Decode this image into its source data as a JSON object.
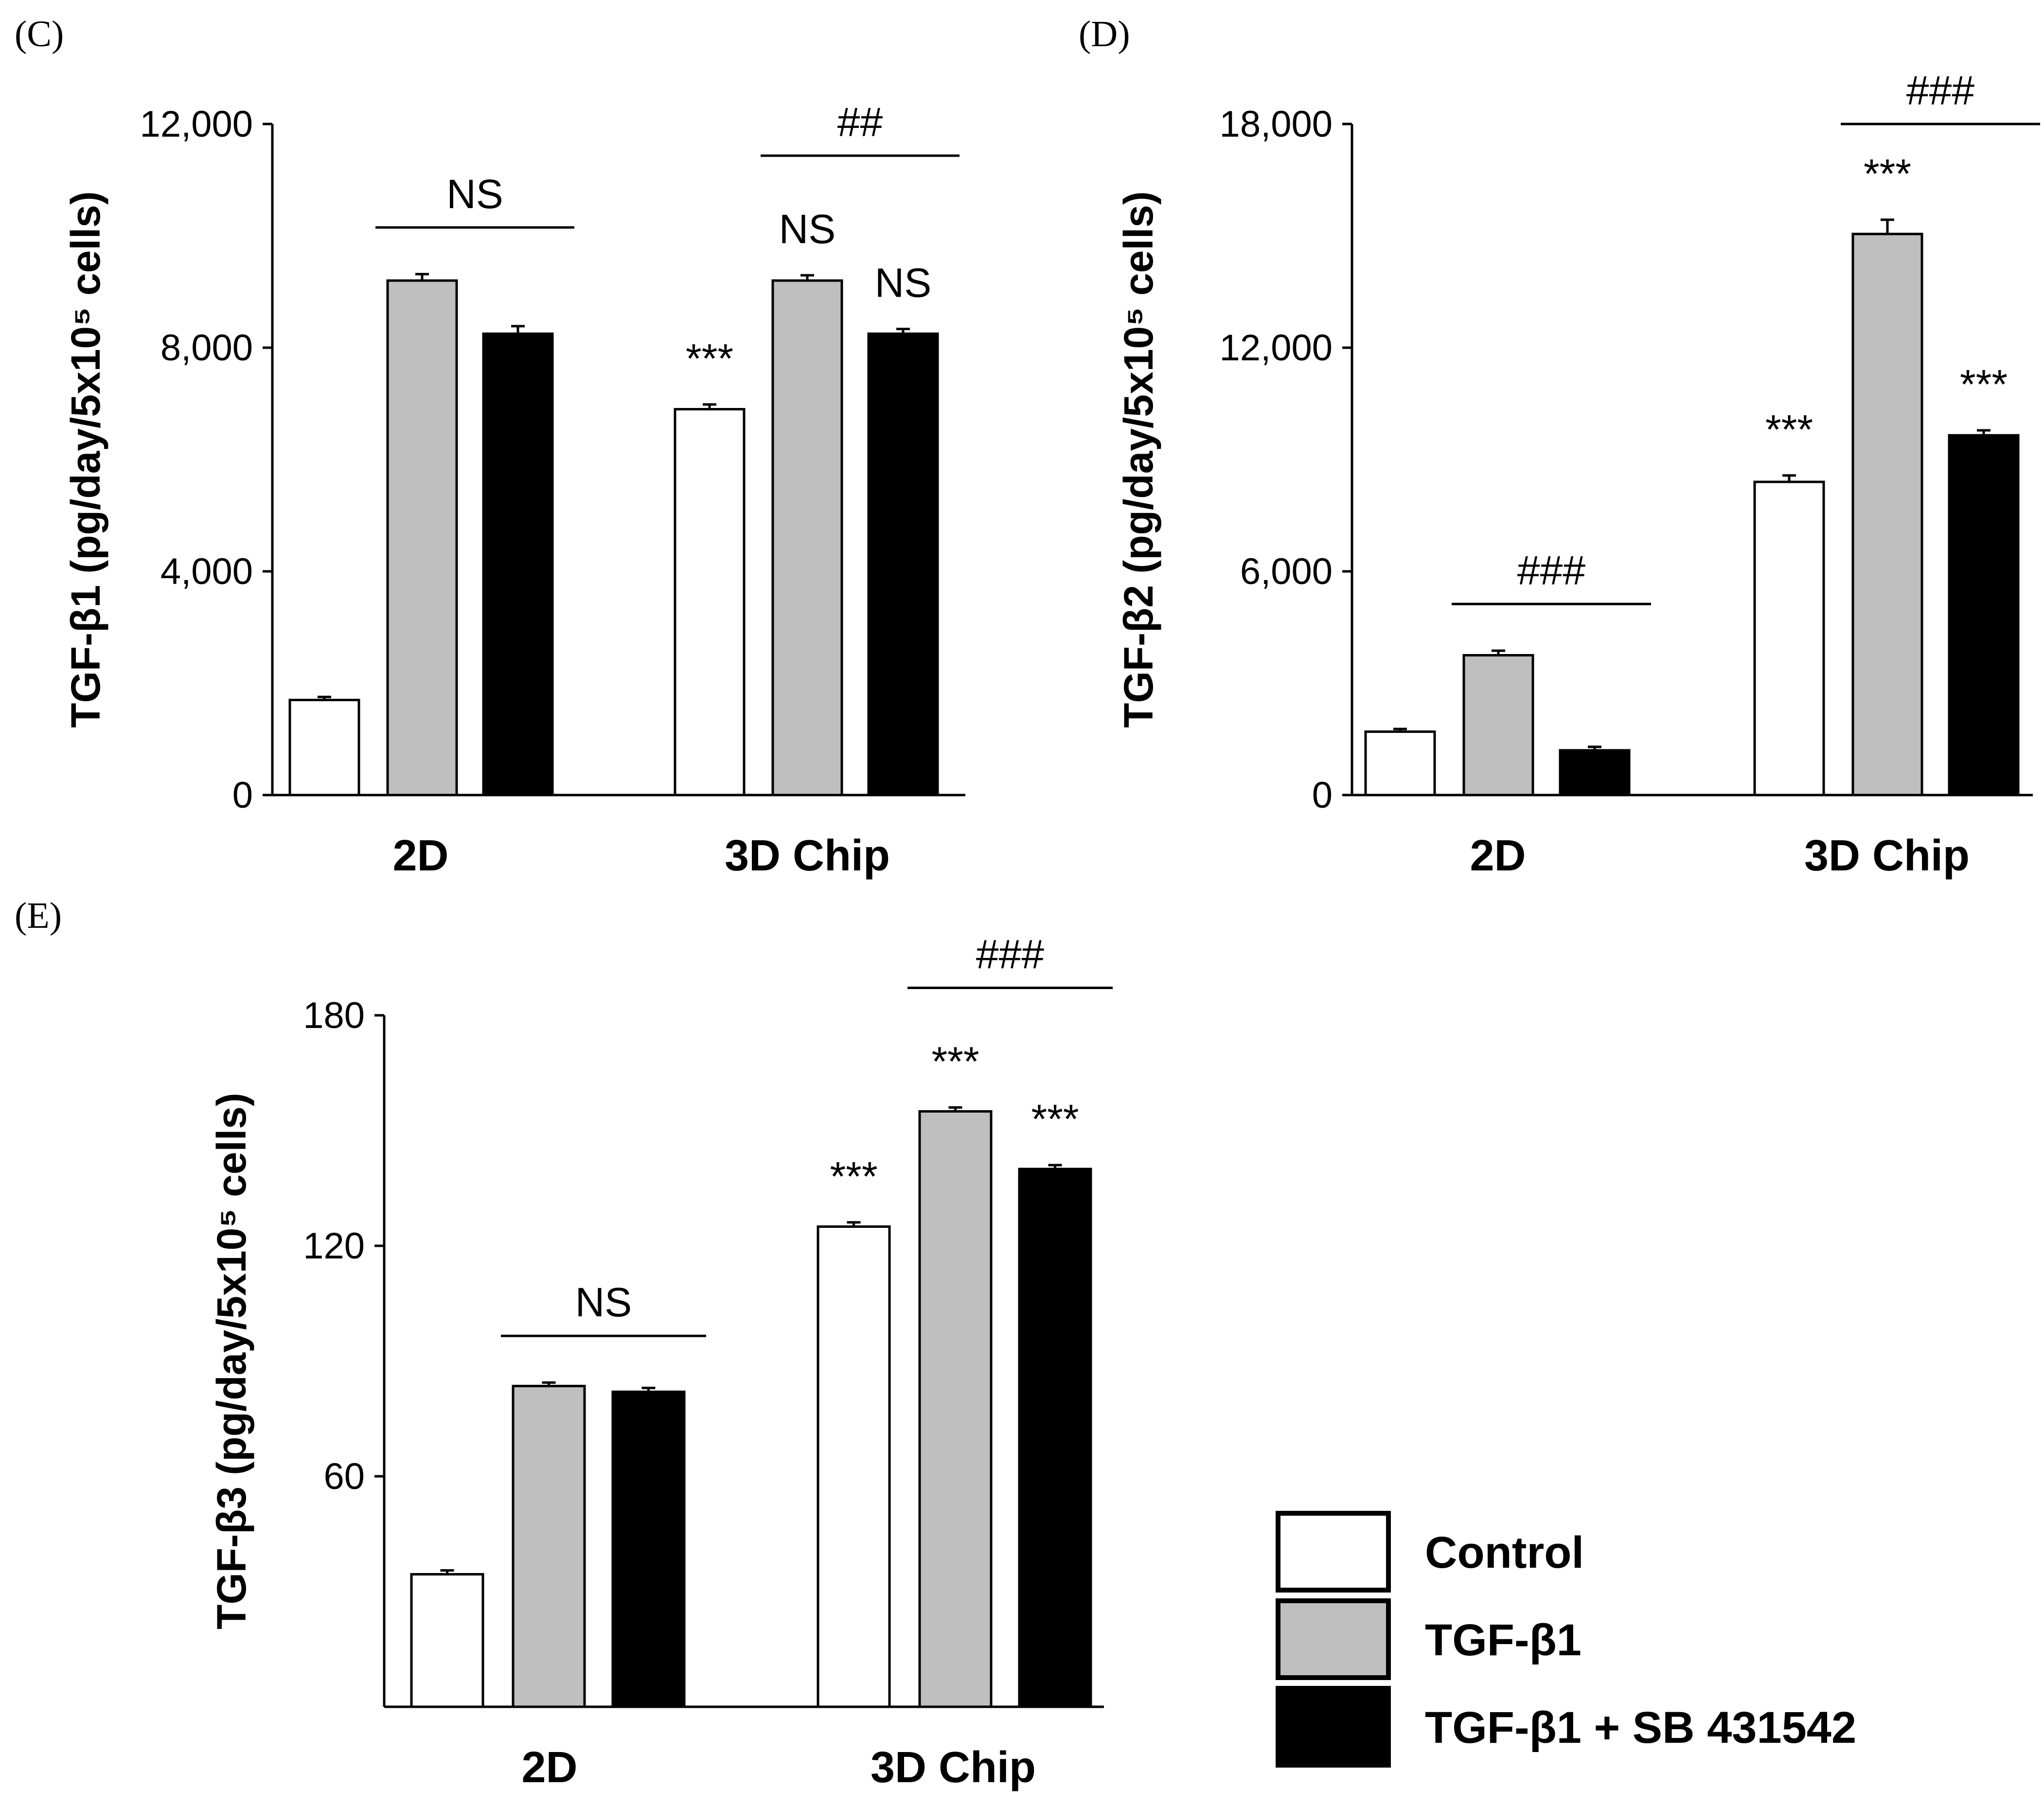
{
  "colors": {
    "Control": "#ffffff",
    "TGF-β1": "#bfbfbf",
    "TGF-β1 + SB 431542": "#000000"
  },
  "legend": [
    "Control",
    "TGF-β1",
    "TGF-β1 + SB 431542"
  ],
  "chart_data": [
    {
      "type": "bar",
      "panel": "(C)",
      "ylabel": "TGF-β1 (pg/day/5x10⁵ cells)",
      "ylim": [
        0,
        12000
      ],
      "yticks": [
        0,
        4000,
        8000,
        12000
      ],
      "ytick_labels": [
        "0",
        "4,000",
        "8,000",
        "12,000"
      ],
      "categories": [
        "2D",
        "3D Chip"
      ],
      "series": [
        {
          "name": "Control",
          "values": [
            1700,
            6900
          ],
          "errors": [
            20,
            50
          ]
        },
        {
          "name": "TGF-β1",
          "values": [
            9200,
            9200
          ],
          "errors": [
            80,
            60
          ]
        },
        {
          "name": "TGF-β1 + SB 431542",
          "values": [
            8250,
            8250
          ],
          "errors": [
            100,
            50
          ]
        }
      ],
      "annotations": [
        {
          "text": "***",
          "category": 1,
          "series": 0
        },
        {
          "text": "NS",
          "category": 1,
          "series": 1
        },
        {
          "text": "NS",
          "category": 1,
          "series": 2
        }
      ],
      "brackets": [
        {
          "text": "NS",
          "category": 0,
          "from_series": 1,
          "to_series": 2
        },
        {
          "text": "##",
          "category": 1,
          "from_series": 1,
          "to_series": 2
        }
      ]
    },
    {
      "type": "bar",
      "panel": "(D)",
      "ylabel": "TGF-β2 (pg/day/5x10⁵ cells)",
      "ylim": [
        0,
        18000
      ],
      "yticks": [
        0,
        6000,
        12000,
        18000
      ],
      "ytick_labels": [
        "0",
        "6,000",
        "12,000",
        "18,000"
      ],
      "categories": [
        "2D",
        "3D Chip"
      ],
      "series": [
        {
          "name": "Control",
          "values": [
            1700,
            8400
          ],
          "errors": [
            20,
            120
          ]
        },
        {
          "name": "TGF-β1",
          "values": [
            3750,
            15050
          ],
          "errors": [
            70,
            330
          ]
        },
        {
          "name": "TGF-β1 + SB 431542",
          "values": [
            1200,
            9650
          ],
          "errors": [
            40,
            80
          ]
        }
      ],
      "annotations": [
        {
          "text": "***",
          "category": 1,
          "series": 0
        },
        {
          "text": "***",
          "category": 1,
          "series": 1
        },
        {
          "text": "***",
          "category": 1,
          "series": 2
        }
      ],
      "brackets": [
        {
          "text": "###",
          "category": 0,
          "from_series": 1,
          "to_series": 2
        },
        {
          "text": "###",
          "category": 1,
          "from_series": 1,
          "to_series": 2
        }
      ]
    },
    {
      "type": "bar",
      "panel": "(E)",
      "ylabel": "TGF-β3 (pg/day/5x10⁵ cells)",
      "ylim": [
        0,
        180
      ],
      "yticks": [
        60,
        120,
        180
      ],
      "ytick_labels": [
        "60",
        "120",
        "180"
      ],
      "categories": [
        "2D",
        "3D Chip"
      ],
      "series": [
        {
          "name": "Control",
          "values": [
            34.5,
            125
          ],
          "errors": [
            0.5,
            0.6
          ]
        },
        {
          "name": "TGF-β1",
          "values": [
            83.5,
            155
          ],
          "errors": [
            0.4,
            0.5
          ]
        },
        {
          "name": "TGF-β1 + SB 431542",
          "values": [
            82,
            140
          ],
          "errors": [
            0.5,
            0.5
          ]
        }
      ],
      "annotations": [
        {
          "text": "***",
          "category": 1,
          "series": 0
        },
        {
          "text": "***",
          "category": 1,
          "series": 1
        },
        {
          "text": "***",
          "category": 1,
          "series": 2
        }
      ],
      "brackets": [
        {
          "text": "NS",
          "category": 0,
          "from_series": 1,
          "to_series": 2
        },
        {
          "text": "###",
          "category": 1,
          "from_series": 1,
          "to_series": 2
        }
      ]
    }
  ]
}
